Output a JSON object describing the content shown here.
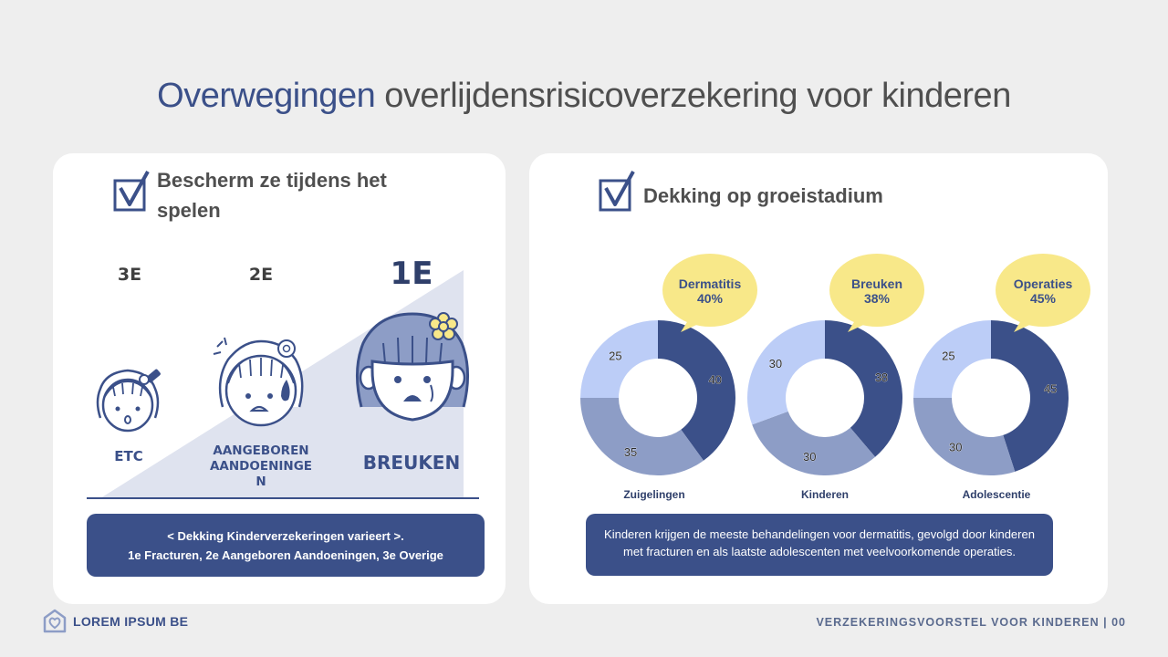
{
  "title": {
    "accent": "Overwegingen",
    "rest": " overlijdensrisicoverzekering voor kinderen"
  },
  "left": {
    "heading_line1": "Bescherm ze tijdens het",
    "heading_line2": "spelen",
    "ranks": [
      "3E",
      "2E",
      "1E"
    ],
    "labels": {
      "third": "ETC",
      "second_line1": "AANGEBOREN",
      "second_line2": "AANDOENINGE",
      "second_line3": "N",
      "first": "BREUKEN"
    },
    "note_line1": "< Dekking Kinderverzekeringen varieert >.",
    "note_line2": "1e Fracturen, 2e Aangeboren Aandoeningen, 3e Overige"
  },
  "right": {
    "heading": "Dekking op groeistadium",
    "note_line1": "Kinderen krijgen de meeste behandelingen voor dermatitis, gevolgd door kinderen",
    "note_line2": "met fracturen en als laatste adolescenten met veelvoorkomende operaties."
  },
  "chart_data": [
    {
      "type": "pie",
      "title": "Zuigelingen",
      "callout": [
        "Dermatitis",
        "40%"
      ],
      "values": [
        40,
        35,
        25
      ],
      "colors": [
        "#3b5089",
        "#8d9dc6",
        "#bccdf7"
      ]
    },
    {
      "type": "pie",
      "title": "Kinderen",
      "callout": [
        "Breuken",
        "38%"
      ],
      "values": [
        38,
        30,
        30
      ],
      "colors": [
        "#3b5089",
        "#8d9dc6",
        "#bccdf7"
      ]
    },
    {
      "type": "pie",
      "title": "Adolescentie",
      "callout": [
        "Operaties",
        "45%"
      ],
      "values": [
        45,
        30,
        25
      ],
      "colors": [
        "#3b5089",
        "#8d9dc6",
        "#bccdf7"
      ]
    }
  ],
  "footer": {
    "brand": "LOREM IPSUM BE",
    "right": "VERZEKERINGSVOORSTEL VOOR KINDEREN | 00"
  },
  "colors": {
    "accent": "#3b5089",
    "callout": "#f8e889",
    "triangle": "#dfe3ef"
  }
}
